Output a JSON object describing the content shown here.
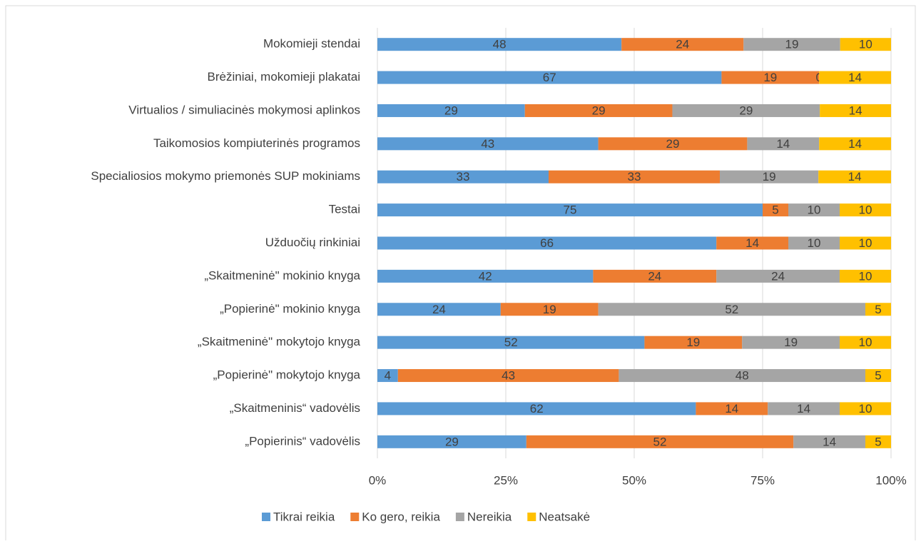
{
  "chart_data": {
    "type": "bar",
    "orientation": "horizontal",
    "stacking": "percent",
    "categories": [
      "Mokomieji stendai",
      "Brėžiniai, mokomieji plakatai",
      "Virtualios / simuliacinės mokymosi aplinkos",
      "Taikomosios kompiuterinės programos",
      "Specialiosios mokymo priemonės SUP mokiniams",
      "Testai",
      "Užduočių rinkiniai",
      "„Skaitmeninė\" mokinio knyga",
      "„Popierinė\" mokinio knyga",
      "„Skaitmeninė\" mokytojo knyga",
      "„Popierinė\" mokytojo knyga",
      "„Skaitmeninis“ vadovėlis",
      "„Popierinis“ vadovėlis"
    ],
    "series": [
      {
        "name": "Tikrai reikia",
        "color": "#5b9bd5",
        "values": [
          48,
          67,
          29,
          43,
          33,
          75,
          66,
          42,
          24,
          52,
          4,
          62,
          29
        ]
      },
      {
        "name": "Ko gero, reikia",
        "color": "#ed7d31",
        "values": [
          24,
          19,
          29,
          29,
          33,
          5,
          14,
          24,
          19,
          19,
          43,
          14,
          52
        ]
      },
      {
        "name": "Nereikia",
        "color": "#a5a5a5",
        "values": [
          19,
          0,
          29,
          14,
          19,
          10,
          10,
          24,
          52,
          19,
          48,
          14,
          14
        ]
      },
      {
        "name": "Neatsakė",
        "color": "#ffc000",
        "values": [
          10,
          14,
          14,
          14,
          14,
          10,
          10,
          10,
          5,
          10,
          5,
          10,
          5
        ]
      }
    ],
    "xlim": [
      0,
      100
    ],
    "xticks": [
      {
        "value": 0,
        "label": "0%"
      },
      {
        "value": 25,
        "label": "25%"
      },
      {
        "value": 50,
        "label": "50%"
      },
      {
        "value": 75,
        "label": "75%"
      },
      {
        "value": 100,
        "label": "100%"
      }
    ],
    "grid": true,
    "legend": "bottom"
  }
}
